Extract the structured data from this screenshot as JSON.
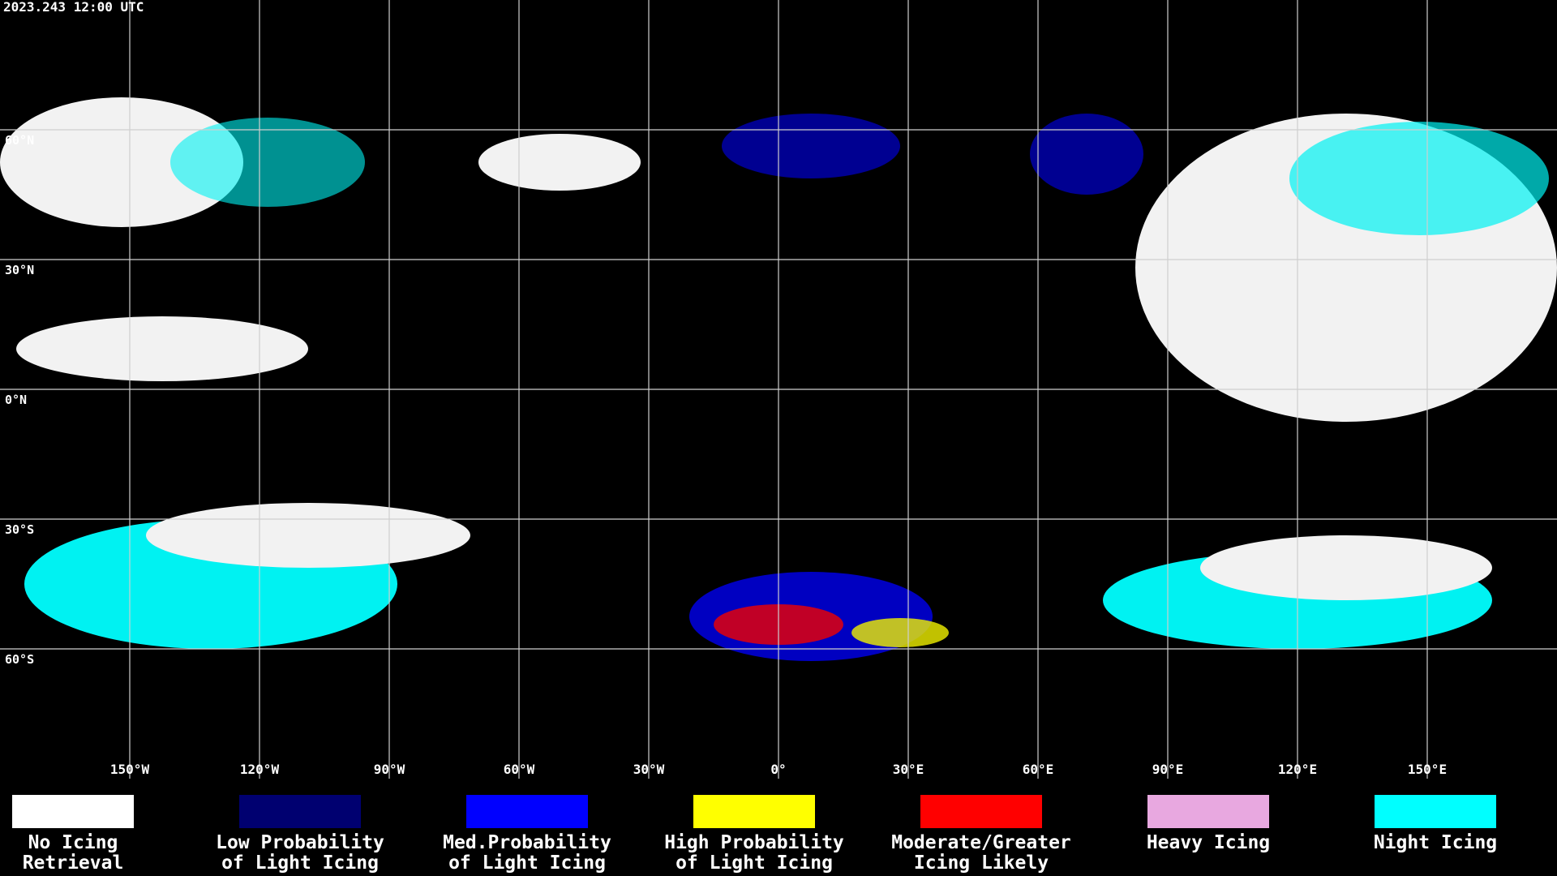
{
  "header": {
    "timestamp": "2023.243 12:00 UTC"
  },
  "map": {
    "lat_labels": [
      "60°N",
      "30°N",
      "0°N",
      "30°S",
      "60°S"
    ],
    "lon_labels": [
      "150°W",
      "120°W",
      "90°W",
      "60°W",
      "30°W",
      "0°",
      "30°E",
      "60°E",
      "90°E",
      "120°E",
      "150°E"
    ]
  },
  "legend": {
    "items": [
      {
        "color": "#ffffff",
        "label": [
          "No Icing",
          "Retrieval"
        ]
      },
      {
        "color": "#000070",
        "label": [
          "Low Probability",
          "of Light Icing"
        ]
      },
      {
        "color": "#0000ff",
        "label": [
          "Med.Probability",
          "of Light Icing"
        ]
      },
      {
        "color": "#ffff00",
        "label": [
          "High Probability",
          "of Light Icing"
        ]
      },
      {
        "color": "#ff0000",
        "label": [
          "Moderate/Greater",
          "Icing Likely"
        ]
      },
      {
        "color": "#e8a8e0",
        "label": [
          "Heavy Icing",
          ""
        ]
      },
      {
        "color": "#00ffff",
        "label": [
          "Night Icing",
          ""
        ]
      }
    ]
  }
}
